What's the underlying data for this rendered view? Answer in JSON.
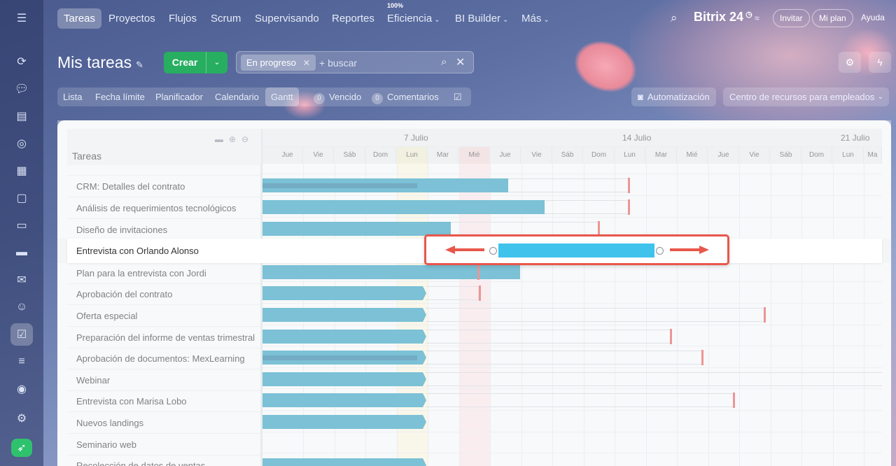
{
  "topnav": {
    "tabs": [
      "Tareas",
      "Proyectos",
      "Flujos",
      "Scrum",
      "Supervisando",
      "Reportes",
      "Eficiencia",
      "BI Builder",
      "Más"
    ],
    "efficiency_value": "100%",
    "brand": "Bitrix 24",
    "invite": "Invitar",
    "plan": "Mi plan",
    "help": "Ayuda"
  },
  "header": {
    "title": "Mis tareas",
    "create": "Crear",
    "filter_chip": "En progreso",
    "search_placeholder": "+ buscar"
  },
  "views": {
    "items": [
      "Lista",
      "Fecha límite",
      "Planificador",
      "Calendario",
      "Gantt"
    ],
    "overdue_count": "0",
    "overdue": "Vencido",
    "comments_count": "0",
    "comments": "Comentarios",
    "automation": "Automatización",
    "resources": "Centro de recursos para empleados"
  },
  "gantt": {
    "tasks_header": "Tareas",
    "weeks": [
      "7 Julio",
      "14 Julio",
      "21 Julio"
    ],
    "days": [
      "Jue",
      "Vie",
      "Sáb",
      "Dom",
      "Lun",
      "Mar",
      "Mié",
      "Jue",
      "Vie",
      "Sáb",
      "Dom",
      "Lun",
      "Mar",
      "Mié",
      "Jue",
      "Vie",
      "Sáb",
      "Dom",
      "Lun",
      "Ma"
    ],
    "tasks": [
      "CRM: Detalles del contrato",
      "Análisis de requerimientos tecnológicos",
      "Diseño de invitaciones",
      "Entrevista con Orlando Alonso",
      "Plan para la entrevista con Jordi",
      "Aprobación del contrato",
      "Oferta especial",
      "Preparación del informe de ventas trimestral",
      "Aprobación de documentos: MexLearning",
      "Webinar",
      "Entrevista con Marisa Lobo",
      "Nuevos landings",
      "Seminario web",
      "Recolección de datos de ventas"
    ]
  },
  "colors": {
    "accent_green": "#27ae60",
    "bar": "#2d9cbd",
    "bar_highlight": "#3fc2ec",
    "deadline": "#e35454",
    "annotation": "#e8574b"
  }
}
